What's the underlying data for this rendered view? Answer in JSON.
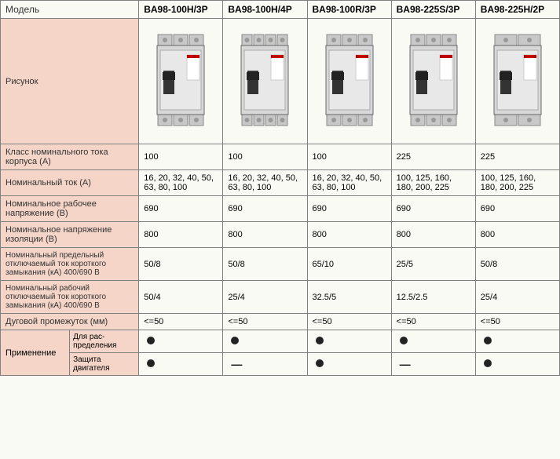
{
  "headers": {
    "model_label": "Модель",
    "models": [
      "BA98-100H/3P",
      "BA98-100H/4P",
      "BA98-100R/3P",
      "BA98-225S/3P",
      "BA98-225H/2P"
    ]
  },
  "rows": {
    "image_label": "Рисунок",
    "frame_current_label": "Класс номинального тока корпуса (А)",
    "frame_current": [
      "100",
      "100",
      "100",
      "225",
      "225"
    ],
    "rated_current_label": "Номинальный ток (А)",
    "rated_current": [
      "16, 20, 32, 40, 50, 63, 80, 100",
      "16, 20, 32, 40, 50, 63, 80, 100",
      "16, 20, 32, 40, 50, 63, 80, 100",
      "100, 125, 160, 180, 200, 225",
      "100, 125, 160, 180, 200, 225"
    ],
    "working_voltage_label": "Номинальное рабочее напряжение (В)",
    "working_voltage": [
      "690",
      "690",
      "690",
      "690",
      "690"
    ],
    "insulation_voltage_label": "Номинальное напряжение изоляции (В)",
    "insulation_voltage": [
      "800",
      "800",
      "800",
      "800",
      "800"
    ],
    "ultimate_break_label": "Номинальный предельный отключаемый ток короткого замыкания (кА) 400/690 В",
    "ultimate_break": [
      "50/8",
      "50/8",
      "65/10",
      "25/5",
      "50/8"
    ],
    "service_break_label": "Номинальный рабочий отключаемый ток короткого замыкания (кА) 400/690 В",
    "service_break": [
      "50/4",
      "25/4",
      "32.5/5",
      "12.5/2.5",
      "25/4"
    ],
    "arc_label": "Дуговой промежуток (мм)",
    "arc": [
      "<=50",
      "<=50",
      "<=50",
      "<=50",
      "<=50"
    ],
    "application_label": "Применение",
    "dist_label": "Для рас-\nпределения",
    "motor_label": "Защита двигателя",
    "dist_vals": [
      "dot",
      "dot",
      "dot",
      "dot",
      "dot"
    ],
    "motor_vals": [
      "dot",
      "dash",
      "dot",
      "dash",
      "dot"
    ]
  },
  "breaker_images": {
    "poles": [
      3,
      4,
      3,
      3,
      2
    ]
  },
  "colors": {
    "label_bg": "#f5d5c8",
    "data_bg": "#fafaf5",
    "border": "#808080",
    "breaker_body": "#d8d8d8",
    "breaker_dark": "#888888",
    "breaker_label": "#ffffff",
    "breaker_accent": "#c00000"
  }
}
